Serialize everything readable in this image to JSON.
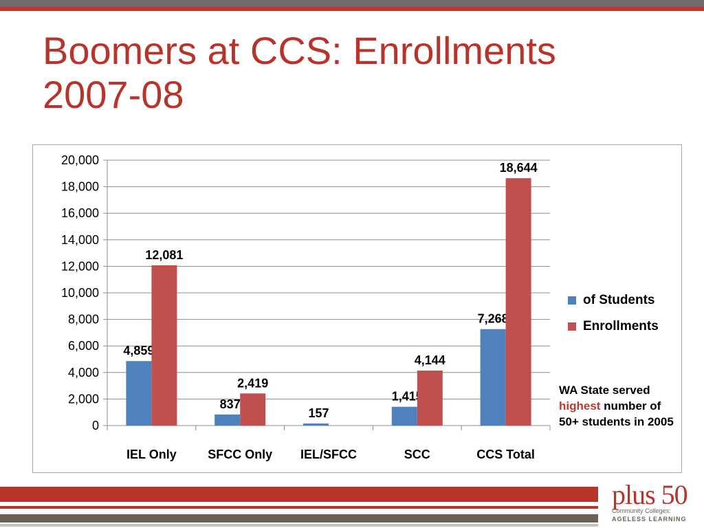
{
  "slide": {
    "title": "Boomers at CCS: Enrollments 2007-08"
  },
  "note": {
    "line_before": "WA State served ",
    "highlight": "highest",
    "line_after": " number of 50+ students in 2005"
  },
  "logo": {
    "main": "plus 50",
    "sub": "Community Colleges:",
    "tag": "AGELESS LEARNING"
  },
  "colors": {
    "title": "#b8332a",
    "students": "#4f81bd",
    "enrollments": "#c0504d"
  },
  "chart_data": {
    "type": "bar",
    "categories": [
      "IEL Only",
      "SFCC Only",
      "IEL/SFCC",
      "SCC",
      "CCS Total"
    ],
    "series": [
      {
        "name": "of Students",
        "values": [
          4859,
          837,
          157,
          1415,
          7268
        ],
        "labels": [
          "4,859",
          "837",
          "157",
          "1,415",
          "7,268"
        ]
      },
      {
        "name": "Enrollments",
        "values": [
          12081,
          2419,
          null,
          4144,
          18644
        ],
        "labels": [
          "12,081",
          "2,419",
          "",
          "4,144",
          "18,644"
        ]
      }
    ],
    "ylim": [
      0,
      20000
    ],
    "yticks": [
      0,
      2000,
      4000,
      6000,
      8000,
      10000,
      12000,
      14000,
      16000,
      18000,
      20000
    ],
    "ytick_labels": [
      "0",
      "2,000",
      "4,000",
      "6,000",
      "8,000",
      "10,000",
      "12,000",
      "14,000",
      "16,000",
      "18,000",
      "20,000"
    ],
    "grid": true,
    "legend": "right"
  }
}
